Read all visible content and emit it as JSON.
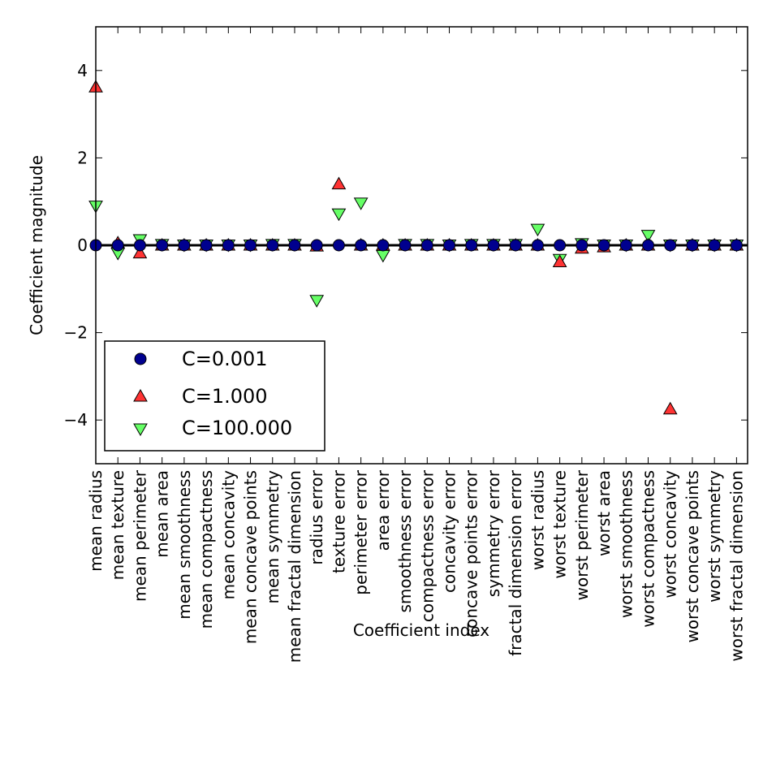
{
  "chart_data": {
    "type": "scatter",
    "xlabel": "Coefficient index",
    "ylabel": "Coefficient magnitude",
    "ylim": [
      -5,
      5
    ],
    "yticks": [
      4,
      2,
      0,
      -2,
      -4
    ],
    "ytick_labels": [
      "4",
      "2",
      "0",
      "−2",
      "−4"
    ],
    "grid": false,
    "legend_position": "lower-left",
    "zero_line": true,
    "categories": [
      "mean radius",
      "mean texture",
      "mean perimeter",
      "mean area",
      "mean smoothness",
      "mean compactness",
      "mean concavity",
      "mean concave points",
      "mean symmetry",
      "mean fractal dimension",
      "radius error",
      "texture error",
      "perimeter error",
      "area error",
      "smoothness error",
      "compactness error",
      "concavity error",
      "concave points error",
      "symmetry error",
      "fractal dimension error",
      "worst radius",
      "worst texture",
      "worst perimeter",
      "worst area",
      "worst smoothness",
      "worst compactness",
      "worst concavity",
      "worst concave points",
      "worst symmetry",
      "worst fractal dimension"
    ],
    "series": [
      {
        "name": "C=0.001",
        "marker": "circle",
        "color": "#00008f",
        "values": [
          0,
          0,
          0,
          0,
          0,
          0,
          0,
          0,
          0,
          0,
          0,
          0,
          0,
          0,
          0,
          0,
          0,
          0,
          0,
          0,
          0,
          0,
          0,
          0,
          0,
          0,
          0,
          0,
          0,
          0
        ]
      },
      {
        "name": "C=1.000",
        "marker": "triangle-up",
        "color": "#ff3333",
        "values": [
          3.62,
          0.05,
          -0.18,
          0,
          0,
          0,
          0,
          0,
          0,
          0,
          -0.02,
          1.4,
          0,
          0,
          0,
          0,
          0,
          0,
          0,
          0,
          0,
          -0.38,
          -0.07,
          -0.04,
          0,
          0,
          -3.75,
          0,
          0,
          0
        ]
      },
      {
        "name": "C=100.000",
        "marker": "triangle-down",
        "color": "#66ff66",
        "values": [
          0.9,
          -0.18,
          0.13,
          0.02,
          0.01,
          0.01,
          0.01,
          0.01,
          0.02,
          0.02,
          -1.26,
          0.72,
          0.97,
          -0.23,
          0.02,
          0.02,
          0.01,
          0.02,
          0.02,
          0.02,
          0.37,
          -0.32,
          0.04,
          0.01,
          0.01,
          0.23,
          0.01,
          0.01,
          0.01,
          0.01
        ]
      }
    ]
  }
}
